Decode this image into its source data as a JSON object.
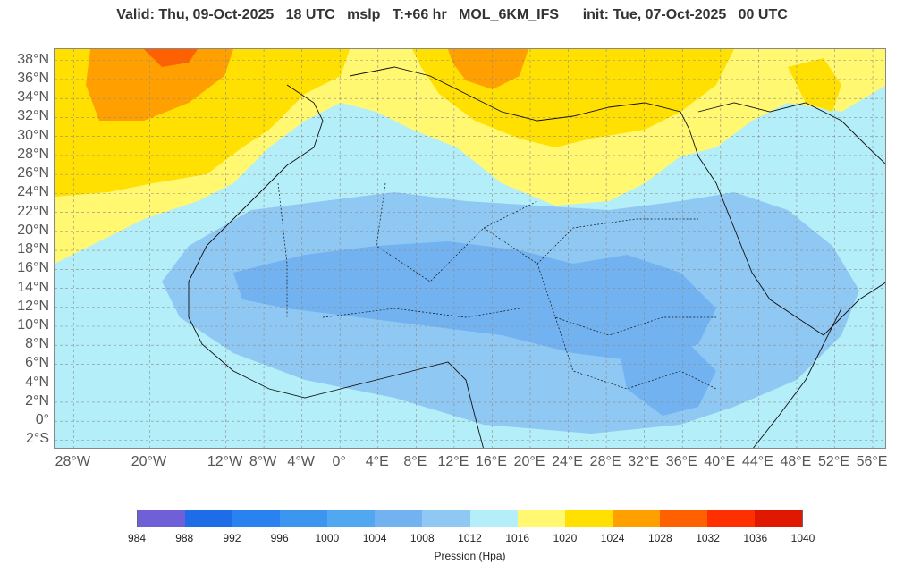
{
  "header": {
    "title": "Valid: Thu, 09-Oct-2025   18 UTC   mslp   T:+66 hr   MOL_6KM_IFS      init: Tue, 07-Oct-2025   00 UTC"
  },
  "map": {
    "lat_labels": [
      "38°N",
      "36°N",
      "34°N",
      "32°N",
      "30°N",
      "28°N",
      "26°N",
      "24°N",
      "22°N",
      "20°N",
      "18°N",
      "16°N",
      "14°N",
      "12°N",
      "10°N",
      "8°N",
      "6°N",
      "4°N",
      "2°N",
      "0°",
      "2°S"
    ],
    "lon_labels": [
      "28°W",
      "20°W",
      "12°W",
      "8°W",
      "4°W",
      "0°",
      "4°E",
      "8°E",
      "12°E",
      "16°E",
      "20°E",
      "24°E",
      "28°E",
      "32°E",
      "36°E",
      "40°E",
      "44°E",
      "48°E",
      "52°E",
      "56°E"
    ],
    "lon_values": [
      -28,
      -20,
      -12,
      -8,
      -4,
      0,
      4,
      8,
      12,
      16,
      20,
      24,
      28,
      32,
      36,
      40,
      44,
      48,
      52,
      56
    ],
    "lat_values": [
      38,
      36,
      34,
      32,
      30,
      28,
      26,
      24,
      22,
      20,
      18,
      16,
      14,
      12,
      10,
      8,
      6,
      4,
      2,
      0,
      -2
    ]
  },
  "colorbar": {
    "ticks": [
      "984",
      "988",
      "992",
      "996",
      "1000",
      "1004",
      "1008",
      "1012",
      "1016",
      "1020",
      "1024",
      "1028",
      "1032",
      "1036",
      "1040"
    ],
    "colors": [
      "#7060d8",
      "#1e6ce8",
      "#2a82f0",
      "#3c96f0",
      "#52a8f0",
      "#72b2f0",
      "#90c8f4",
      "#b4eef8",
      "#fff870",
      "#ffe000",
      "#ffa000",
      "#ff6000",
      "#ff3000",
      "#e01800"
    ],
    "label": "Pression (Hpa)"
  }
}
